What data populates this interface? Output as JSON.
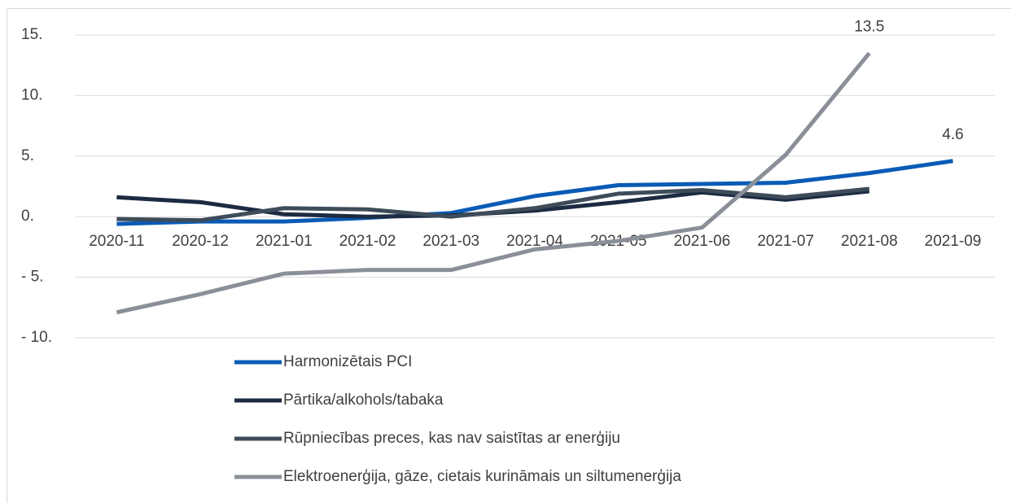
{
  "chart_data": {
    "type": "line",
    "categories": [
      "2020-11",
      "2020-12",
      "2021-01",
      "2021-02",
      "2021-03",
      "2021-04",
      "2021-05",
      "2021-06",
      "2021-07",
      "2021-08",
      "2021-09"
    ],
    "series": [
      {
        "name": "Harmonizētais PCI",
        "color": "#0a5bb5",
        "values": [
          -0.6,
          -0.4,
          -0.4,
          -0.1,
          0.3,
          1.7,
          2.6,
          2.7,
          2.8,
          3.6,
          4.6
        ],
        "value_labels": [
          null,
          null,
          null,
          null,
          null,
          null,
          null,
          null,
          null,
          null,
          "4.6"
        ]
      },
      {
        "name": "Pārtika/alkohols/tabaka",
        "color": "#1c2a42",
        "values": [
          1.6,
          1.2,
          0.2,
          0.0,
          0.1,
          0.5,
          1.2,
          2.0,
          1.4,
          2.1,
          null
        ]
      },
      {
        "name": "Rūpniecības preces, kas nav saistītas ar enerģiju",
        "color": "#3e4c5a",
        "values": [
          -0.2,
          -0.3,
          0.7,
          0.6,
          0.0,
          0.7,
          1.9,
          2.2,
          1.6,
          2.3,
          null
        ]
      },
      {
        "name": "Elektroenerģija, gāze, cietais kurināmais un siltumenerģija",
        "color": "#8a8f98",
        "values": [
          -7.9,
          -6.4,
          -4.7,
          -4.4,
          -4.4,
          -2.7,
          -2.0,
          -0.9,
          5.1,
          13.5,
          null
        ],
        "value_labels": [
          null,
          null,
          null,
          null,
          null,
          null,
          null,
          null,
          null,
          "13.5",
          null
        ]
      }
    ],
    "ylim": [
      -10,
      15
    ],
    "yticks": [
      {
        "value": -10,
        "label": "- 10."
      },
      {
        "value": -5,
        "label": "- 5."
      },
      {
        "value": 0,
        "label": "0."
      },
      {
        "value": 5,
        "label": "5."
      },
      {
        "value": 10,
        "label": "10."
      },
      {
        "value": 15,
        "label": "15."
      }
    ],
    "grid": true,
    "legend": "bottom"
  }
}
